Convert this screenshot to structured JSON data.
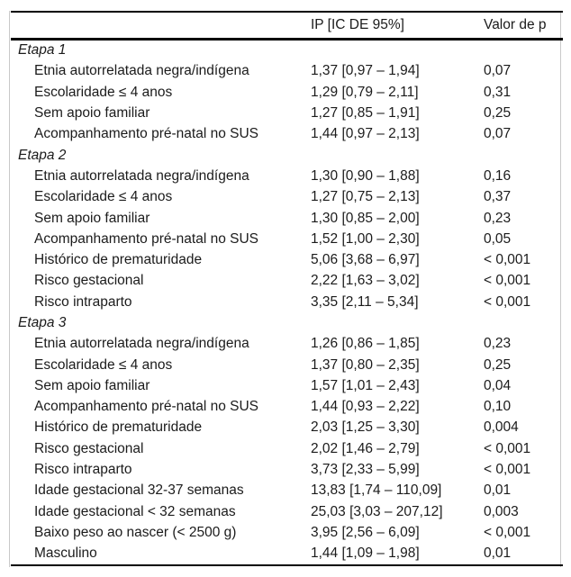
{
  "table": {
    "header": {
      "ip": "IP [IC DE 95%]",
      "p": "Valor de p"
    },
    "sections": [
      {
        "title": "Etapa 1",
        "rows": [
          {
            "label": "Etnia autorrelatada negra/indígena",
            "ip": "1,37 [0,97 – 1,94]",
            "p": "0,07"
          },
          {
            "label": "Escolaridade ≤ 4 anos",
            "ip": "1,29 [0,79 – 2,11]",
            "p": "0,31"
          },
          {
            "label": "Sem apoio familiar",
            "ip": "1,27 [0,85 – 1,91]",
            "p": "0,25"
          },
          {
            "label": "Acompanhamento pré-natal no SUS",
            "ip": "1,44 [0,97 – 2,13]",
            "p": "0,07"
          }
        ]
      },
      {
        "title": "Etapa 2",
        "rows": [
          {
            "label": "Etnia autorrelatada negra/indígena",
            "ip": "1,30 [0,90 – 1,88]",
            "p": "0,16"
          },
          {
            "label": "Escolaridade ≤ 4 anos",
            "ip": "1,27 [0,75 – 2,13]",
            "p": "0,37"
          },
          {
            "label": "Sem apoio familiar",
            "ip": "1,30 [0,85 – 2,00]",
            "p": "0,23"
          },
          {
            "label": "Acompanhamento pré-natal no SUS",
            "ip": "1,52 [1,00 – 2,30]",
            "p": "0,05"
          },
          {
            "label": "Histórico de prematuridade",
            "ip": "5,06 [3,68 – 6,97]",
            "p": "< 0,001"
          },
          {
            "label": "Risco gestacional",
            "ip": "2,22 [1,63 – 3,02]",
            "p": "< 0,001"
          },
          {
            "label": "Risco intraparto",
            "ip": "3,35 [2,11 – 5,34]",
            "p": "< 0,001"
          }
        ]
      },
      {
        "title": "Etapa 3",
        "rows": [
          {
            "label": "Etnia autorrelatada negra/indígena",
            "ip": "1,26 [0,86 – 1,85]",
            "p": "0,23"
          },
          {
            "label": "Escolaridade ≤ 4 anos",
            "ip": "1,37 [0,80 – 2,35]",
            "p": "0,25"
          },
          {
            "label": "Sem apoio familiar",
            "ip": "1,57 [1,01 – 2,43]",
            "p": "0,04"
          },
          {
            "label": "Acompanhamento pré-natal no SUS",
            "ip": "1,44 [0,93 – 2,22]",
            "p": "0,10"
          },
          {
            "label": "Histórico de prematuridade",
            "ip": "2,03 [1,25 – 3,30]",
            "p": "0,004"
          },
          {
            "label": "Risco gestacional",
            "ip": "2,02 [1,46 – 2,79]",
            "p": "< 0,001"
          },
          {
            "label": "Risco intraparto",
            "ip": "3,73 [2,33 – 5,99]",
            "p": "< 0,001"
          },
          {
            "label": "Idade gestacional 32-37 semanas",
            "ip": "13,83 [1,74 – 110,09]",
            "p": "0,01"
          },
          {
            "label": "Idade gestacional < 32 semanas",
            "ip": "25,03 [3,03 – 207,12]",
            "p": "0,003"
          },
          {
            "label": "Baixo peso ao nascer (< 2500 g)",
            "ip": "3,95 [2,56 – 6,09]",
            "p": "< 0,001"
          },
          {
            "label": "Masculino",
            "ip": "1,44 [1,09 – 1,98]",
            "p": "0,01"
          }
        ]
      }
    ]
  },
  "colors": {
    "background": "#ffffff",
    "text": "#1b1b1b",
    "rule": "#000000",
    "edge_line": "#c9c9c9"
  }
}
